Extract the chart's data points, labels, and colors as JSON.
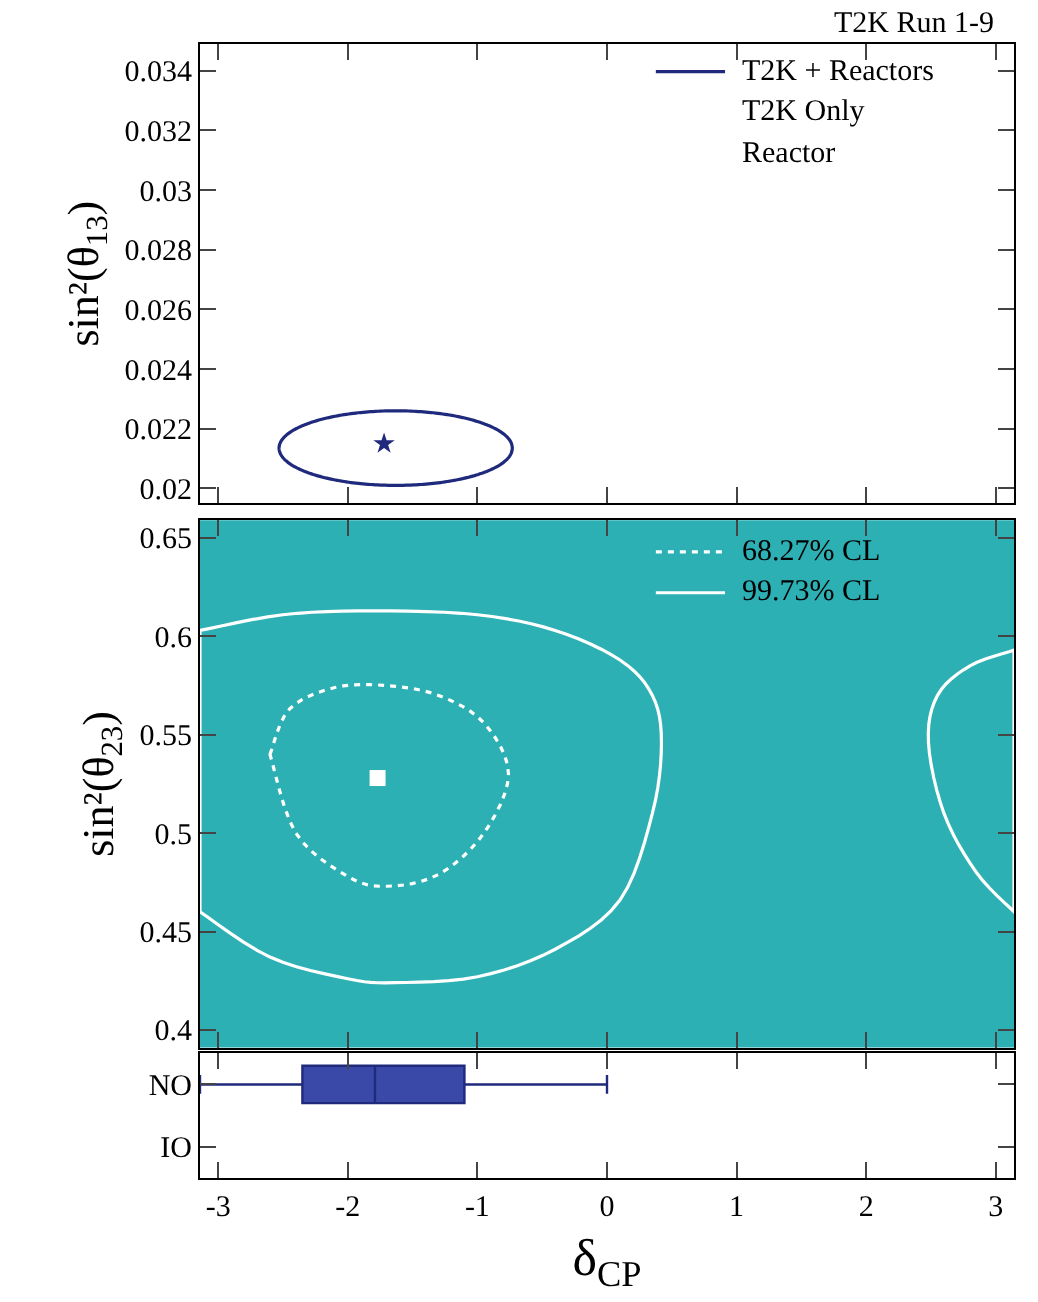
{
  "chart_data": [
    {
      "type": "scatter",
      "title": "T2K Run 1-9",
      "ylabel": "sin²(θ$_{13}$)",
      "xlim": [
        -3.14,
        3.14
      ],
      "xticks": [
        -3,
        -2,
        -1,
        0,
        1,
        2,
        3
      ],
      "ylim": [
        0.0195,
        0.0349
      ],
      "yticks": [
        0.02,
        0.022,
        0.024,
        0.026,
        0.028,
        0.03,
        0.032,
        0.034
      ],
      "tick_labels": "y",
      "annotations": [
        "T2K + Reactors",
        "T2K Only",
        "Reactor"
      ],
      "series": [
        {
          "type": "scatter",
          "marker": "star",
          "color": "#1f2a7c",
          "x": [
            -1.72
          ],
          "values": [
            0.0215
          ]
        }
      ]
    },
    {
      "type": "scatter",
      "ylabel": "sin²(θ$_{23}$)",
      "xlim": [
        -3.14,
        3.14
      ],
      "xticks": [
        -3,
        -2,
        -1,
        0,
        1,
        2,
        3
      ],
      "ylim": [
        0.391,
        0.659
      ],
      "yticks": [
        0.4,
        0.45,
        0.5,
        0.55,
        0.6,
        0.65
      ],
      "tick_labels": "y",
      "annotations": [
        "68.27% CL",
        "99.73% CL"
      ],
      "series": [
        {
          "type": "scatter",
          "marker": "square",
          "color": "#ffffff",
          "x": [
            -1.77
          ],
          "values": [
            0.528
          ]
        }
      ]
    },
    {
      "type": "box",
      "orientation": "horizontal",
      "xlabel": "δ$_{CP}$",
      "categories": [
        "NO",
        "IO"
      ],
      "xlim": [
        -3.14,
        3.14
      ],
      "xticks": [
        -3,
        -2,
        -1,
        0,
        1,
        2,
        3
      ],
      "color": "#3a48a8",
      "boxes": [
        {
          "low": -3.14,
          "q1": -2.35,
          "median": -1.79,
          "q3": -1.1,
          "high": 0.0
        },
        null
      ]
    }
  ]
}
